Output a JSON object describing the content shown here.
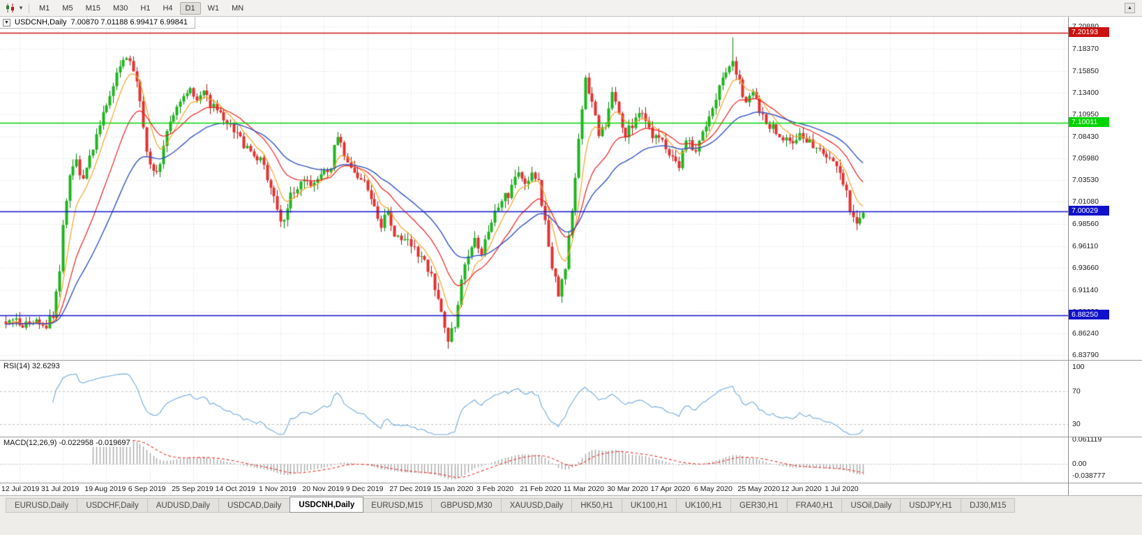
{
  "toolbar": {
    "timeframes": [
      "M1",
      "M5",
      "M15",
      "M30",
      "H1",
      "H4",
      "D1",
      "W1",
      "MN"
    ],
    "active_timeframe": "D1"
  },
  "main_chart": {
    "title": "USDCNH,Daily",
    "ohlc_text": "7.00870 7.01188 6.99417 6.99841",
    "price_ticks": [
      "7.20880",
      "7.18370",
      "7.15850",
      "7.13400",
      "7.10950",
      "7.08430",
      "7.05980",
      "7.03530",
      "7.01080",
      "6.98560",
      "6.96110",
      "6.93660",
      "6.91140",
      "6.88690",
      "6.86240",
      "6.83790"
    ],
    "hlines": [
      {
        "price": 7.20193,
        "label": "7.20193",
        "color": "#CC1111"
      },
      {
        "price": 7.10011,
        "label": "7.10011",
        "color": "#00D400"
      },
      {
        "price": 7.00029,
        "label": "7.00029",
        "color": "#1111CC"
      },
      {
        "price": 6.8825,
        "label": "6.88250",
        "color": "#1111CC"
      }
    ]
  },
  "rsi_panel": {
    "label": "RSI(14) 32.6293",
    "levels": [
      "100",
      "70",
      "30"
    ]
  },
  "macd_panel": {
    "label": "MACD(12,26,9) -0.022958 -0.019697",
    "ticks": [
      "0.061119",
      "0.00",
      "-0.038777"
    ]
  },
  "date_axis": [
    "12 Jul 2019",
    "31 Jul 2019",
    "19 Aug 2019",
    "6 Sep 2019",
    "25 Sep 2019",
    "14 Oct 2019",
    "1 Nov 2019",
    "20 Nov 2019",
    "9 Dec 2019",
    "27 Dec 2019",
    "15 Jan 2020",
    "3 Feb 2020",
    "21 Feb 2020",
    "11 Mar 2020",
    "30 Mar 2020",
    "17 Apr 2020",
    "6 May 2020",
    "25 May 2020",
    "12 Jun 2020",
    "1 Jul 2020"
  ],
  "tabs": {
    "items": [
      {
        "label": "EURUSD,Daily",
        "active": false
      },
      {
        "label": "USDCHF,Daily",
        "active": false
      },
      {
        "label": "AUDUSD,Daily",
        "active": false
      },
      {
        "label": "USDCAD,Daily",
        "active": false
      },
      {
        "label": "USDCNH,Daily",
        "active": true
      },
      {
        "label": "EURUSD,M15",
        "active": false
      },
      {
        "label": "GBPUSD,M30",
        "active": false
      },
      {
        "label": "XAUUSD,Daily",
        "active": false
      },
      {
        "label": "HK50,H1",
        "active": false
      },
      {
        "label": "UK100,H1",
        "active": false
      },
      {
        "label": "UK100,H1",
        "active": false
      },
      {
        "label": "GER30,H1",
        "active": false
      },
      {
        "label": "FRA40,H1",
        "active": false
      },
      {
        "label": "USOil,Daily",
        "active": false
      },
      {
        "label": "USDJPY,H1",
        "active": false
      },
      {
        "label": "DJ30,M15",
        "active": false
      }
    ]
  },
  "chart_data": {
    "type": "candlestick",
    "symbol": "USDCNH",
    "timeframe": "Daily",
    "ohlc_current": {
      "open": 7.0087,
      "high": 7.01188,
      "low": 6.99417,
      "close": 6.99841
    },
    "bars": 257,
    "ylim": [
      6.8379,
      7.2088
    ],
    "last_close": 6.99841,
    "extremes": {
      "high": [
        217,
        7.1965
      ],
      "low": [
        132,
        6.845
      ]
    },
    "close_anchors": [
      [
        0,
        6.877
      ],
      [
        5,
        6.872
      ],
      [
        9,
        6.876
      ],
      [
        12,
        6.871
      ],
      [
        14,
        6.882
      ],
      [
        16,
        6.932
      ],
      [
        17,
        6.99
      ],
      [
        19,
        7.042
      ],
      [
        21,
        7.056
      ],
      [
        23,
        7.036
      ],
      [
        25,
        7.06
      ],
      [
        28,
        7.096
      ],
      [
        30,
        7.12
      ],
      [
        32,
        7.146
      ],
      [
        34,
        7.166
      ],
      [
        36,
        7.176
      ],
      [
        38,
        7.16
      ],
      [
        40,
        7.128
      ],
      [
        41,
        7.09
      ],
      [
        43,
        7.052
      ],
      [
        45,
        7.04
      ],
      [
        47,
        7.076
      ],
      [
        49,
        7.106
      ],
      [
        52,
        7.126
      ],
      [
        55,
        7.142
      ],
      [
        57,
        7.126
      ],
      [
        59,
        7.136
      ],
      [
        61,
        7.12
      ],
      [
        64,
        7.11
      ],
      [
        67,
        7.096
      ],
      [
        70,
        7.082
      ],
      [
        73,
        7.066
      ],
      [
        76,
        7.056
      ],
      [
        79,
        7.03
      ],
      [
        81,
        7.0
      ],
      [
        83,
        6.986
      ],
      [
        85,
        7.016
      ],
      [
        88,
        7.036
      ],
      [
        91,
        7.028
      ],
      [
        94,
        7.038
      ],
      [
        97,
        7.052
      ],
      [
        99,
        7.088
      ],
      [
        101,
        7.062
      ],
      [
        104,
        7.046
      ],
      [
        107,
        7.03
      ],
      [
        110,
        7.006
      ],
      [
        112,
        6.986
      ],
      [
        114,
        6.998
      ],
      [
        116,
        6.976
      ],
      [
        119,
        6.968
      ],
      [
        122,
        6.96
      ],
      [
        125,
        6.942
      ],
      [
        128,
        6.916
      ],
      [
        130,
        6.89
      ],
      [
        132,
        6.856
      ],
      [
        134,
        6.872
      ],
      [
        136,
        6.926
      ],
      [
        138,
        6.952
      ],
      [
        140,
        6.97
      ],
      [
        142,
        6.956
      ],
      [
        144,
        6.982
      ],
      [
        147,
        7.006
      ],
      [
        150,
        7.02
      ],
      [
        153,
        7.042
      ],
      [
        155,
        7.028
      ],
      [
        157,
        7.046
      ],
      [
        159,
        7.032
      ],
      [
        161,
        6.99
      ],
      [
        163,
        6.938
      ],
      [
        165,
        6.906
      ],
      [
        167,
        6.94
      ],
      [
        169,
        6.996
      ],
      [
        171,
        7.08
      ],
      [
        173,
        7.146
      ],
      [
        175,
        7.12
      ],
      [
        177,
        7.088
      ],
      [
        179,
        7.1
      ],
      [
        181,
        7.136
      ],
      [
        183,
        7.108
      ],
      [
        185,
        7.088
      ],
      [
        187,
        7.098
      ],
      [
        189,
        7.112
      ],
      [
        191,
        7.1
      ],
      [
        193,
        7.088
      ],
      [
        196,
        7.078
      ],
      [
        199,
        7.062
      ],
      [
        201,
        7.052
      ],
      [
        203,
        7.078
      ],
      [
        206,
        7.072
      ],
      [
        208,
        7.09
      ],
      [
        211,
        7.118
      ],
      [
        214,
        7.152
      ],
      [
        217,
        7.172
      ],
      [
        219,
        7.146
      ],
      [
        221,
        7.12
      ],
      [
        223,
        7.138
      ],
      [
        225,
        7.116
      ],
      [
        228,
        7.098
      ],
      [
        231,
        7.088
      ],
      [
        234,
        7.076
      ],
      [
        237,
        7.09
      ],
      [
        240,
        7.078
      ],
      [
        243,
        7.068
      ],
      [
        246,
        7.06
      ],
      [
        248,
        7.05
      ],
      [
        250,
        7.032
      ],
      [
        252,
        7.005
      ],
      [
        254,
        6.988
      ],
      [
        256,
        6.9984
      ]
    ],
    "x_tick_first_bar": 4,
    "x_tick_step": 13,
    "moving_averages": [
      {
        "period": 7,
        "color": "#F7A224"
      },
      {
        "period": 18,
        "color": "#EE1C1C"
      },
      {
        "period": 34,
        "color": "#3151C4"
      }
    ],
    "rsi_period": 14,
    "rsi_current": 32.6293,
    "macd_periods": [
      12,
      26,
      9
    ],
    "macd_current": -0.022958,
    "macd_signal_current": -0.019697,
    "macd_range": [
      -0.038777,
      0.061119
    ],
    "colors": {
      "up": "#1CB51C",
      "up_edge": "#0B7E0B",
      "down": "#E53030",
      "down_edge": "#A31212",
      "grid": "#D9D9D9",
      "level_dash": "#BFBFBF",
      "rsi_line": "#6FA8DC",
      "macd_hist": "#A6A6A6",
      "macd_signal": "#EE3333",
      "background": "#FFFFFF"
    }
  }
}
